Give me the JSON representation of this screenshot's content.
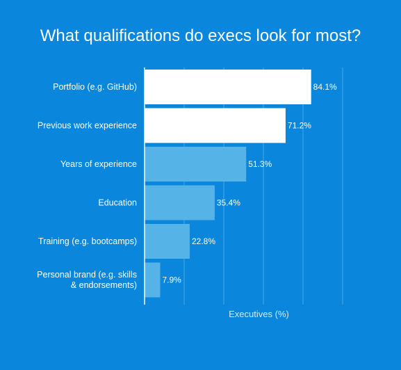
{
  "chart_data": {
    "type": "bar",
    "orientation": "horizontal",
    "title": "What qualifications do execs look for most?",
    "xlabel": "Executives (%)",
    "ylabel": "",
    "xlim": [
      0,
      100
    ],
    "grid": true,
    "categories": [
      [
        "Portfolio (e.g. GitHub)"
      ],
      [
        "Previous work experience"
      ],
      [
        "Years of experience"
      ],
      [
        "Education"
      ],
      [
        "Training (e.g. bootcamps)"
      ],
      [
        "Personal brand (e.g. skills",
        "& endorsements)"
      ]
    ],
    "values": [
      84.1,
      71.2,
      51.3,
      35.4,
      22.8,
      7.9
    ],
    "value_labels": [
      "84.1%",
      "71.2%",
      "51.3%",
      "35.4%",
      "22.8%",
      "7.9%"
    ],
    "highlight_count": 2,
    "colors": {
      "background": "#0a87dc",
      "highlight_bar": "#ffffff",
      "bar": "#56b3e8",
      "grid": "#48a8e8",
      "axis": "#ffffff",
      "text": "#ffffff",
      "axis_title": "#d6ebfa"
    }
  }
}
